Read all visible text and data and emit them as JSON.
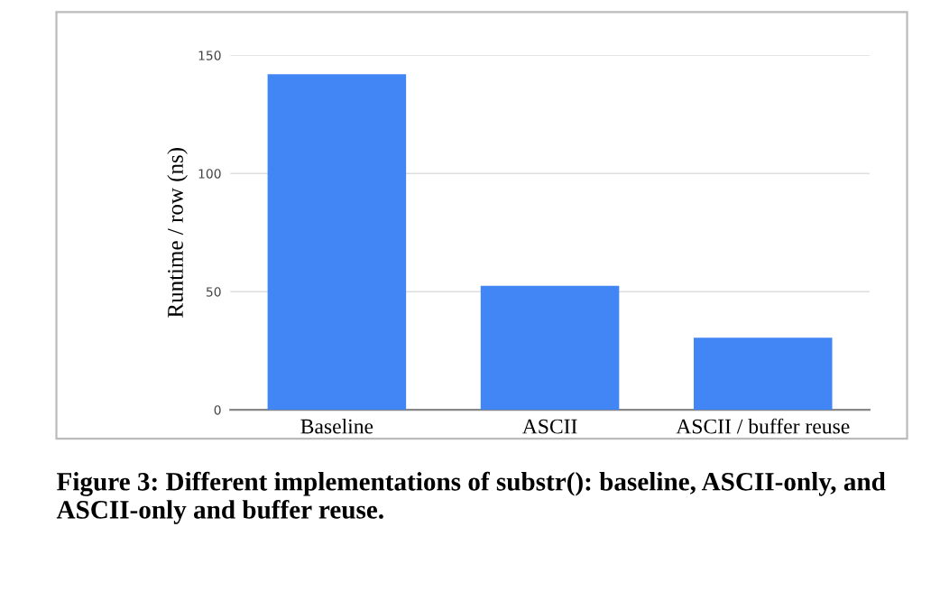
{
  "chart_data": {
    "type": "bar",
    "ylabel": "Runtime / row (ns)",
    "categories": [
      "Baseline",
      "ASCII",
      "ASCII / buffer reuse"
    ],
    "values": [
      142,
      52.5,
      30.5
    ],
    "color": "#4285f4",
    "ylim": [
      0,
      150
    ],
    "yticks": [
      0,
      50,
      100,
      150
    ],
    "grid": "y",
    "annotations": [
      "Figure 3: Different implementations of substr(): baseline, ASCII-only, and ASCII-only and buffer reuse."
    ]
  }
}
